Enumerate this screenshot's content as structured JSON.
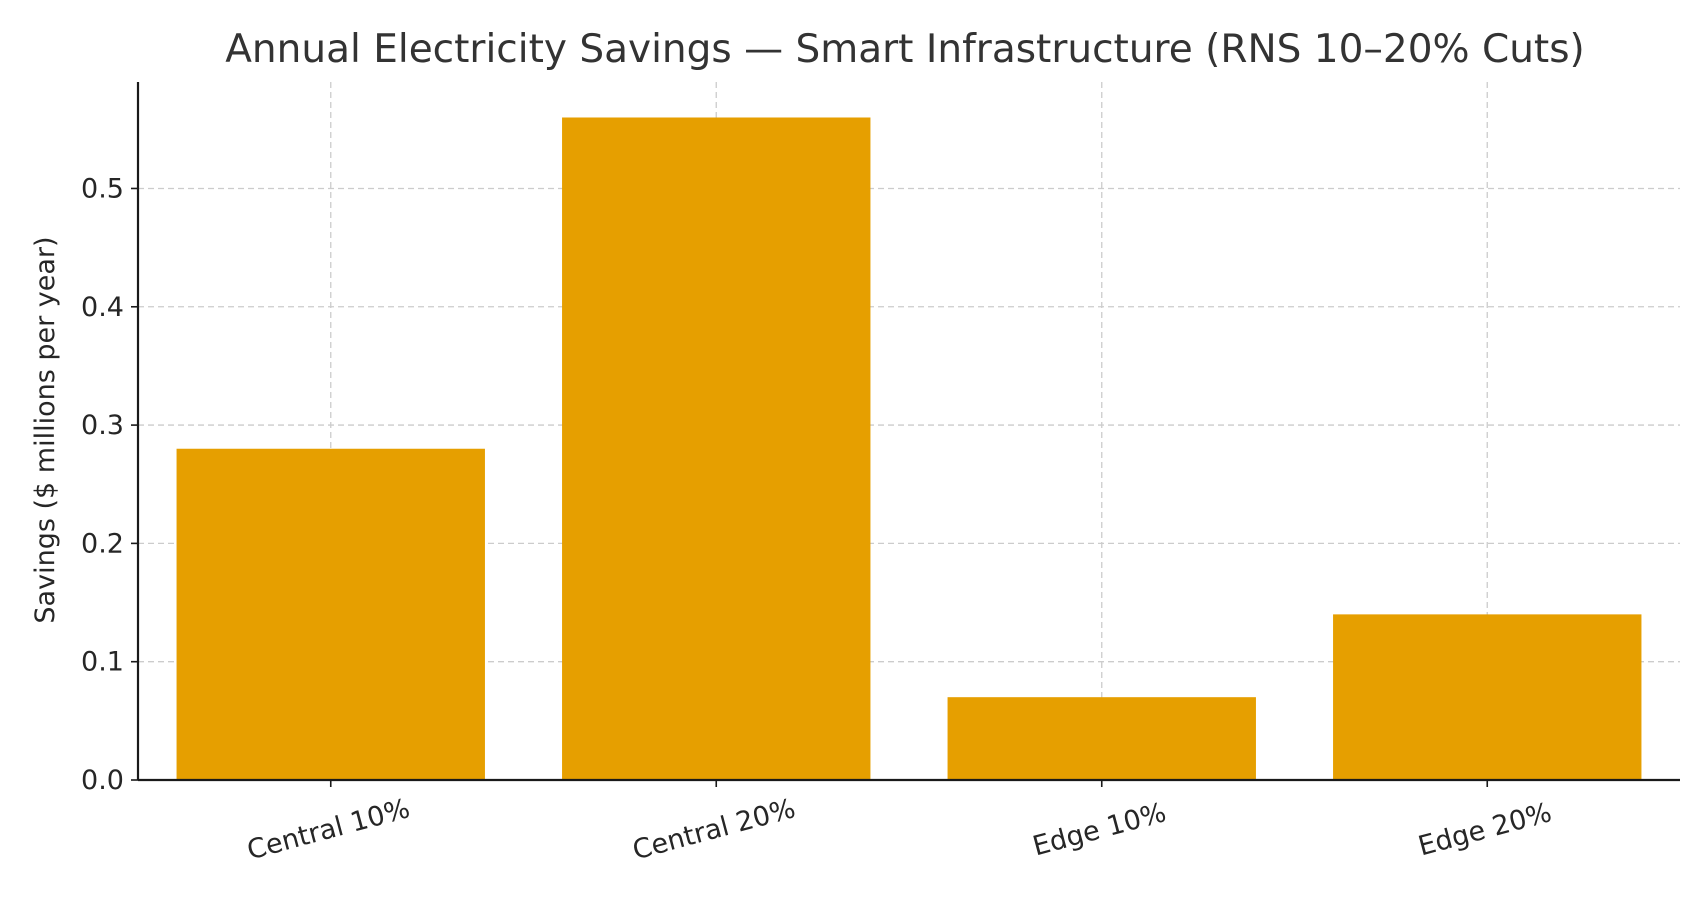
{
  "chart_data": {
    "type": "bar",
    "title": "Annual Electricity Savings — Smart Infrastructure (RNS 10–20% Cuts)",
    "xlabel": "",
    "ylabel": "Savings ($ millions per year)",
    "categories": [
      "Central 10%",
      "Central 20%",
      "Edge 10%",
      "Edge 20%"
    ],
    "values": [
      0.28,
      0.56,
      0.07,
      0.14
    ],
    "ylim": [
      0,
      0.59
    ],
    "yticks": [
      0.0,
      0.1,
      0.2,
      0.3,
      0.4,
      0.5
    ],
    "ytick_labels": [
      "0.0",
      "0.1",
      "0.2",
      "0.3",
      "0.4",
      "0.5"
    ],
    "grid": true,
    "bar_color": "#E69F00",
    "xtick_rotation_deg": -15
  }
}
